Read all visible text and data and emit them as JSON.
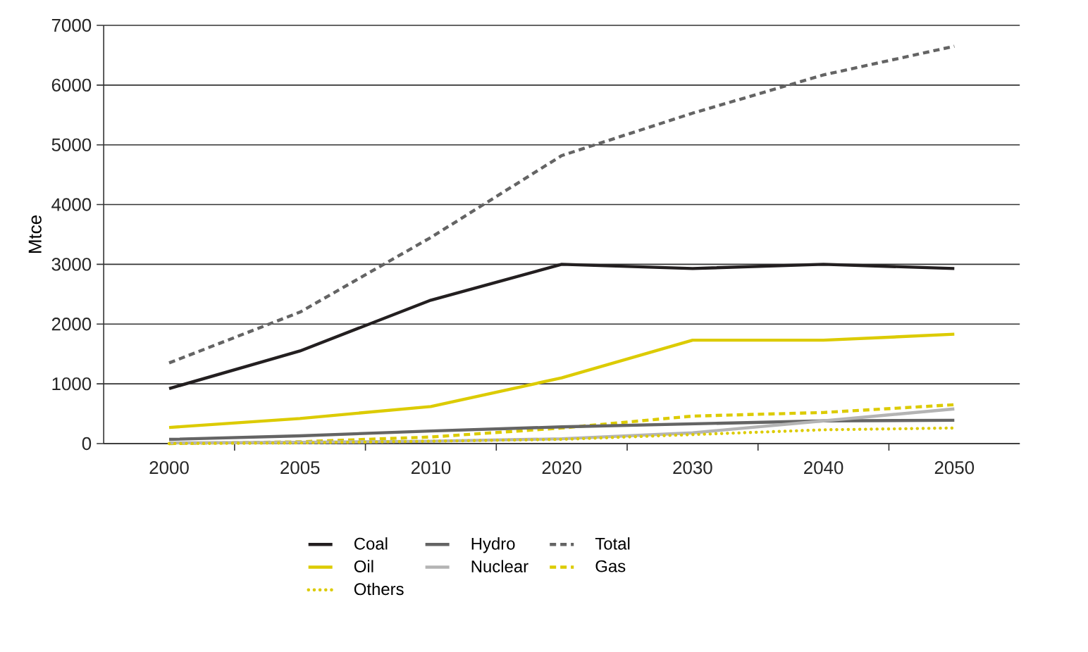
{
  "chart_data": {
    "type": "line",
    "ylabel": "Mtce",
    "categories": [
      "2000",
      "2005",
      "2010",
      "2020",
      "2030",
      "2040",
      "2050"
    ],
    "ylim": [
      0,
      7000
    ],
    "yticks": [
      0,
      1000,
      2000,
      3000,
      4000,
      5000,
      6000,
      7000
    ],
    "grid": "y",
    "legend": "bottom",
    "series": [
      {
        "name": "Coal",
        "color": "#231f20",
        "line_style": "solid",
        "values": [
          920,
          1550,
          2400,
          3000,
          2930,
          3000,
          2930
        ]
      },
      {
        "name": "Oil",
        "color": "#dccb00",
        "line_style": "solid",
        "values": [
          270,
          420,
          620,
          1100,
          1730,
          1730,
          1830
        ]
      },
      {
        "name": "Gas",
        "color": "#dccb00",
        "line_style": "dashed",
        "values": [
          0,
          30,
          110,
          260,
          460,
          520,
          650
        ]
      },
      {
        "name": "Hydro",
        "color": "#646464",
        "line_style": "solid",
        "values": [
          70,
          130,
          210,
          280,
          330,
          380,
          390
        ]
      },
      {
        "name": "Nuclear",
        "color": "#b4b4b4",
        "line_style": "solid",
        "values": [
          10,
          20,
          40,
          80,
          180,
          380,
          580
        ]
      },
      {
        "name": "Others",
        "color": "#dccb00",
        "line_style": "dotted",
        "values": [
          0,
          10,
          40,
          70,
          150,
          230,
          260
        ]
      },
      {
        "name": "Total",
        "color": "#646464",
        "line_style": "dashed",
        "values": [
          1350,
          2200,
          3450,
          4820,
          5530,
          6170,
          6650
        ]
      }
    ]
  }
}
